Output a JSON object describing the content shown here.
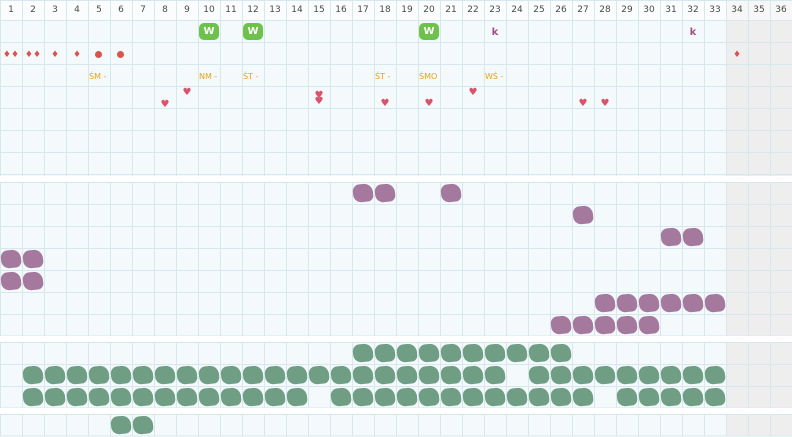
{
  "columns": [
    "1",
    "2",
    "3",
    "4",
    "5",
    "6",
    "7",
    "8",
    "9",
    "10",
    "11",
    "12",
    "13",
    "14",
    "15",
    "16",
    "17",
    "18",
    "19",
    "20",
    "21",
    "22",
    "23",
    "24",
    "25",
    "26",
    "27",
    "28",
    "29",
    "30",
    "31",
    "32",
    "33",
    "34",
    "35",
    "36"
  ],
  "weekend_columns": [
    34,
    35,
    36
  ],
  "colors": {
    "grid_line": "#d6e8ee",
    "cell_bg": "#f4f9fb",
    "weekend_bg": "#eeeeee",
    "purple": "#a5799e",
    "green": "#6f9e84",
    "badge_green": "#6cc24a",
    "red": "#d9534f",
    "orange": "#e8a21a"
  },
  "top_section": {
    "badges": [
      {
        "col": 10,
        "text": "W"
      },
      {
        "col": 12,
        "text": "W"
      },
      {
        "col": 20,
        "text": "W"
      }
    ],
    "k_marks": [
      {
        "col": 23,
        "text": "k"
      },
      {
        "col": 32,
        "text": "k"
      }
    ],
    "drops": [
      {
        "col": 1,
        "text": "♦♦"
      },
      {
        "col": 2,
        "text": "♦♦"
      },
      {
        "col": 3,
        "text": "♦"
      },
      {
        "col": 4,
        "text": "♦"
      },
      {
        "col": 34,
        "text": "♦"
      }
    ],
    "dots": [
      5,
      6
    ],
    "labels": [
      {
        "col": 5,
        "text": "ŚM -"
      },
      {
        "col": 10,
        "text": "NM -"
      },
      {
        "col": 12,
        "text": "ŚT -"
      },
      {
        "col": 18,
        "text": "ŚT -"
      },
      {
        "col": 20,
        "text": "ŚMO"
      },
      {
        "col": 23,
        "text": "WŚ -"
      }
    ],
    "hearts": [
      {
        "col": 8,
        "offset": 12,
        "text": "♥"
      },
      {
        "col": 9,
        "offset": 0,
        "text": "♥"
      },
      {
        "col": 15,
        "offset": 3,
        "text": "♥"
      },
      {
        "col": 15,
        "offset": 9,
        "text": "♥"
      },
      {
        "col": 18,
        "offset": 11,
        "text": "♥"
      },
      {
        "col": 20,
        "offset": 11,
        "text": "♥"
      },
      {
        "col": 22,
        "offset": 0,
        "text": "♥"
      },
      {
        "col": 27,
        "offset": 11,
        "text": "♥"
      },
      {
        "col": 28,
        "offset": 11,
        "text": "♥"
      }
    ]
  },
  "purple_section": {
    "rows": [
      [
        17,
        18,
        21
      ],
      [
        27
      ],
      [
        31,
        32
      ],
      [
        1,
        2
      ],
      [
        1,
        2
      ],
      [
        28,
        29,
        30,
        31,
        32,
        33
      ],
      [
        26,
        27,
        28,
        29,
        30
      ]
    ]
  },
  "green_section": {
    "rows": [
      [
        17,
        18,
        19,
        20,
        21,
        22,
        23,
        24,
        25,
        26
      ],
      [
        2,
        3,
        4,
        5,
        6,
        7,
        8,
        9,
        10,
        11,
        12,
        13,
        14,
        15,
        16,
        17,
        18,
        19,
        20,
        21,
        22,
        23,
        25,
        26,
        27,
        28,
        29,
        30,
        31,
        32,
        33
      ],
      [
        2,
        3,
        4,
        5,
        6,
        7,
        8,
        9,
        10,
        11,
        12,
        13,
        14,
        16,
        17,
        18,
        19,
        20,
        21,
        22,
        23,
        24,
        25,
        26,
        27,
        29,
        30,
        31,
        32,
        33
      ]
    ]
  },
  "bottom_section": {
    "rows": [
      [
        6,
        7
      ]
    ]
  }
}
